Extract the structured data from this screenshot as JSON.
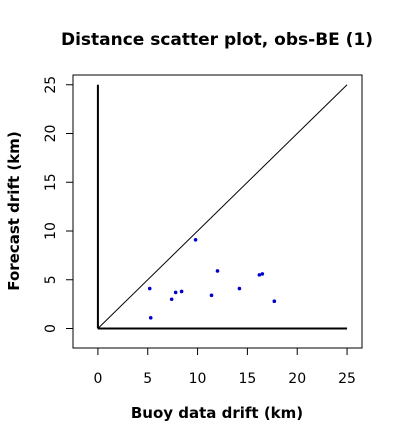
{
  "chart_data": {
    "type": "scatter",
    "title": "Distance scatter plot, obs-BE (1)",
    "xlabel": "Buoy data drift (km)",
    "ylabel": "Forecast drift (km)",
    "xlim": [
      -2.5,
      26.5
    ],
    "ylim": [
      -2,
      26
    ],
    "xticks": [
      0,
      5,
      10,
      15,
      20,
      25
    ],
    "yticks": [
      0,
      5,
      10,
      15,
      20,
      25
    ],
    "xtick_labels": [
      "0",
      "5",
      "10",
      "15",
      "20",
      "25"
    ],
    "ytick_labels": [
      "0",
      "5",
      "10",
      "15",
      "20",
      "25"
    ],
    "grid": false,
    "point_color": "#0000cc",
    "reference_lines": [
      {
        "kind": "diagonal",
        "from": [
          0,
          0
        ],
        "to": [
          25,
          25
        ]
      },
      {
        "kind": "axis",
        "from": [
          0,
          0
        ],
        "to": [
          0,
          25
        ]
      },
      {
        "kind": "axis",
        "from": [
          0,
          0
        ],
        "to": [
          25,
          0
        ]
      }
    ],
    "points": [
      {
        "x": 5.2,
        "y": 4.1
      },
      {
        "x": 5.3,
        "y": 1.1
      },
      {
        "x": 7.4,
        "y": 3.0
      },
      {
        "x": 7.8,
        "y": 3.7
      },
      {
        "x": 8.4,
        "y": 3.8
      },
      {
        "x": 9.8,
        "y": 9.1
      },
      {
        "x": 11.4,
        "y": 3.4
      },
      {
        "x": 12.0,
        "y": 5.9
      },
      {
        "x": 14.2,
        "y": 4.1
      },
      {
        "x": 16.2,
        "y": 5.5
      },
      {
        "x": 16.5,
        "y": 5.6
      },
      {
        "x": 17.7,
        "y": 2.8
      }
    ]
  }
}
